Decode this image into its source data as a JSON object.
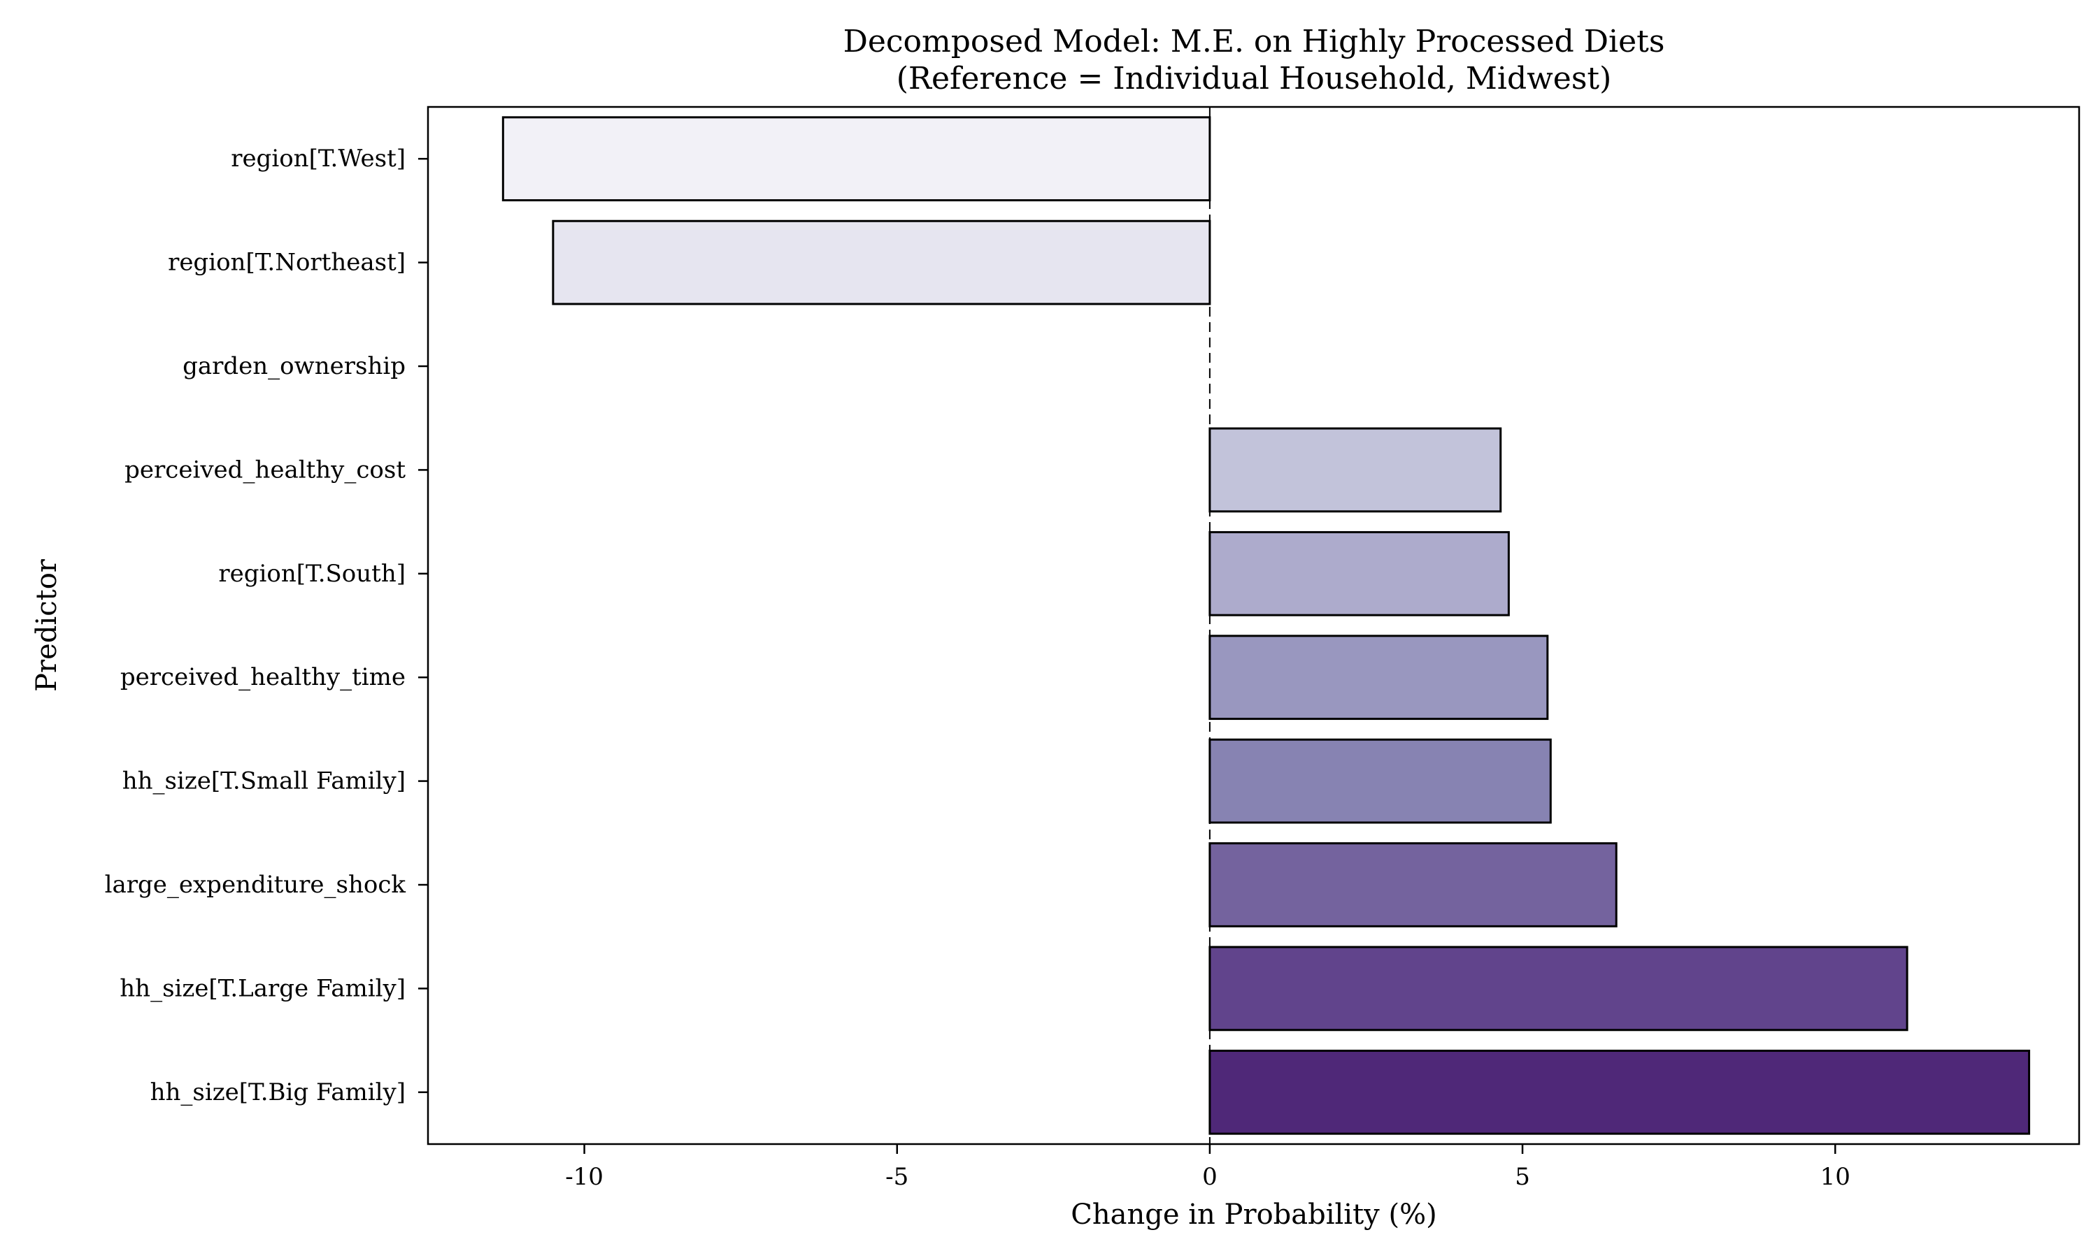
{
  "chart_data": {
    "type": "bar",
    "orientation": "horizontal",
    "title": "Decomposed Model: M.E. on Highly Processed Diets",
    "subtitle": "(Reference = Individual Household, Midwest)",
    "xlabel": "Change in Probability (%)",
    "ylabel": "Predictor",
    "xlim": [
      -12.5,
      13.9
    ],
    "xticks": [
      -10,
      -5,
      0,
      5,
      10
    ],
    "xtick_labels": [
      "-10",
      "-5",
      "0",
      "5",
      "10"
    ],
    "grid": false,
    "legend": "none",
    "reference_line": {
      "x": 0,
      "style": "dashed"
    },
    "categories": [
      "region[T.West]",
      "region[T.Northeast]",
      "garden_ownership",
      "perceived_healthy_cost",
      "region[T.South]",
      "perceived_healthy_time",
      "hh_size[T.Small Family]",
      "large_expenditure_shock",
      "hh_size[T.Large Family]",
      "hh_size[T.Big Family]"
    ],
    "values": [
      -11.3,
      -10.5,
      0.0,
      4.65,
      4.78,
      5.4,
      5.45,
      6.5,
      11.15,
      13.1
    ],
    "colors": [
      "#f2f1f7",
      "#e6e5f0",
      "#d6d6e8",
      "#c2c3da",
      "#adabcc",
      "#9997bf",
      "#8783b2",
      "#74639e",
      "#61448c",
      "#4f2878"
    ],
    "bar_edge_color": "#000000"
  }
}
